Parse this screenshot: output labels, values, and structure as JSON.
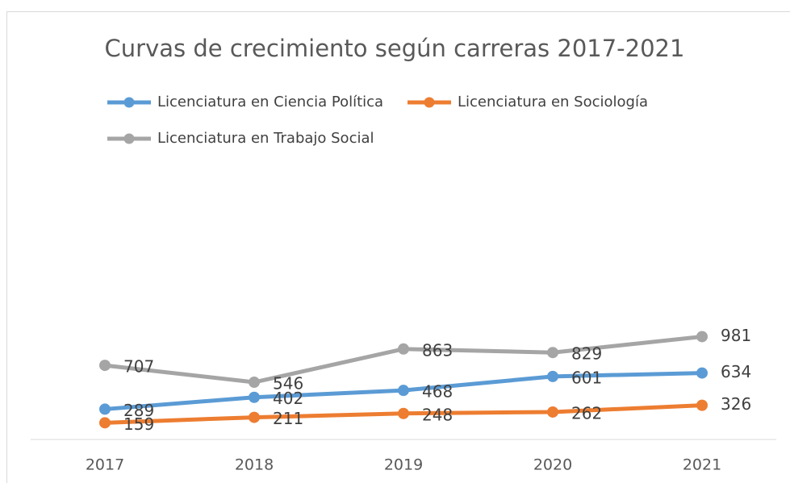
{
  "chart_data": {
    "type": "line",
    "stacked": true,
    "title": "Curvas de crecimiento según carreras 2017-2021",
    "categories": [
      "2017",
      "2018",
      "2019",
      "2020",
      "2021"
    ],
    "series": [
      {
        "name": "Licenciatura en Ciencia Política",
        "color": "#5b9bd5",
        "values": [
          289,
          402,
          468,
          601,
          634
        ]
      },
      {
        "name": "Licenciatura en Sociología",
        "color": "#ed7d31",
        "values": [
          159,
          211,
          248,
          262,
          326
        ]
      },
      {
        "name": "Licenciatura en Trabajo Social",
        "color": "#a5a5a5",
        "values": [
          707,
          546,
          863,
          829,
          981
        ]
      }
    ],
    "ylim": [
      0,
      2500
    ],
    "legend": "top"
  }
}
